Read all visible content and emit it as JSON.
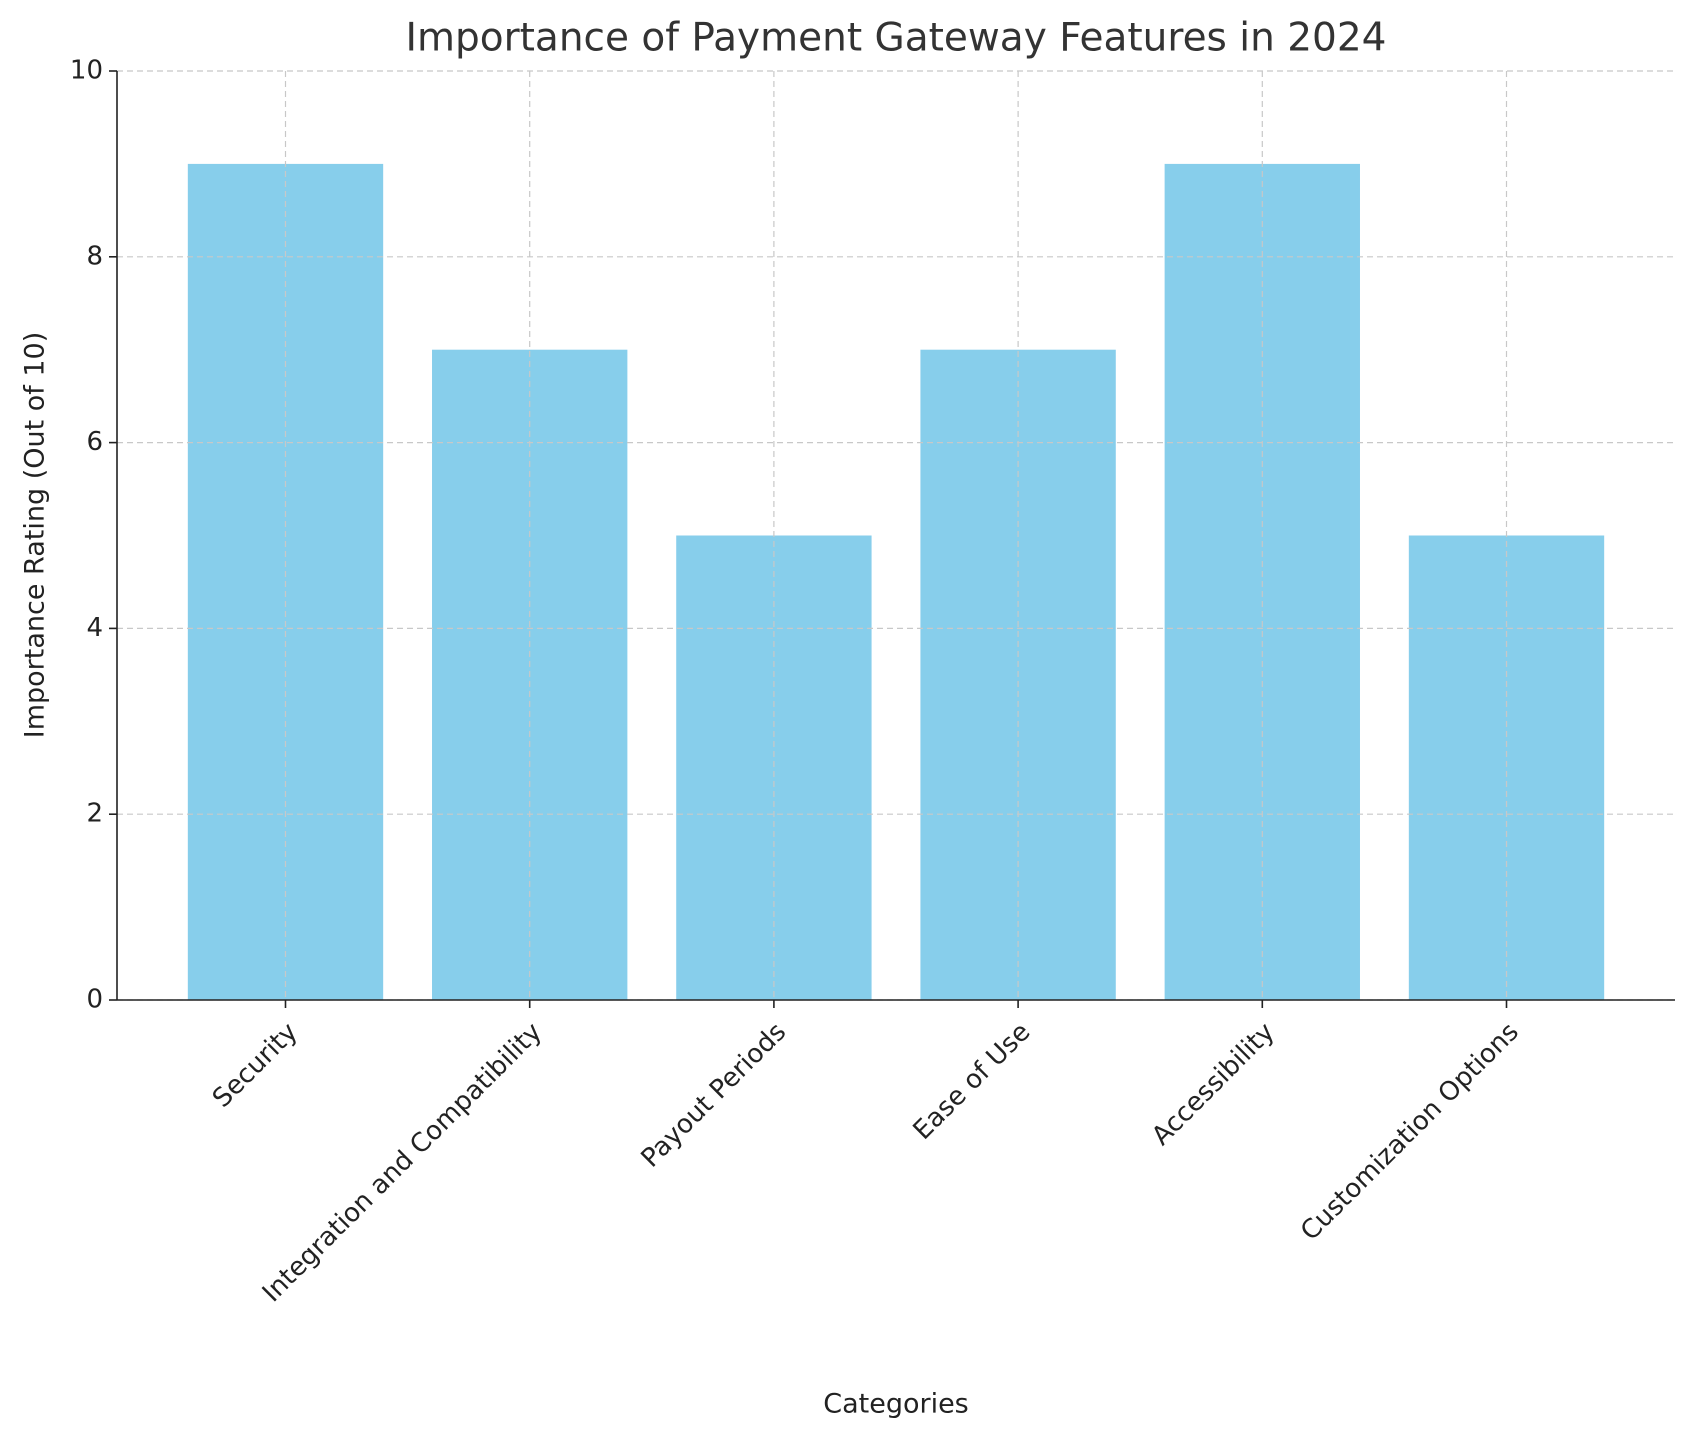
{
  "chart_data": {
    "type": "bar",
    "title": "Importance of Payment Gateway Features in 2024",
    "x_label": "Categories",
    "y_label": "Importance Rating (Out of 10)",
    "categories": [
      "Security",
      "Integration and Compatibility",
      "Payout Periods",
      "Ease of Use",
      "Accessibility",
      "Customization Options"
    ],
    "values": [
      9,
      7,
      5,
      7,
      9,
      5
    ],
    "color": "#87ceeb",
    "ylim": [
      0,
      10
    ],
    "yticks": [
      0,
      2,
      4,
      6,
      8,
      10
    ],
    "grid": true
  }
}
